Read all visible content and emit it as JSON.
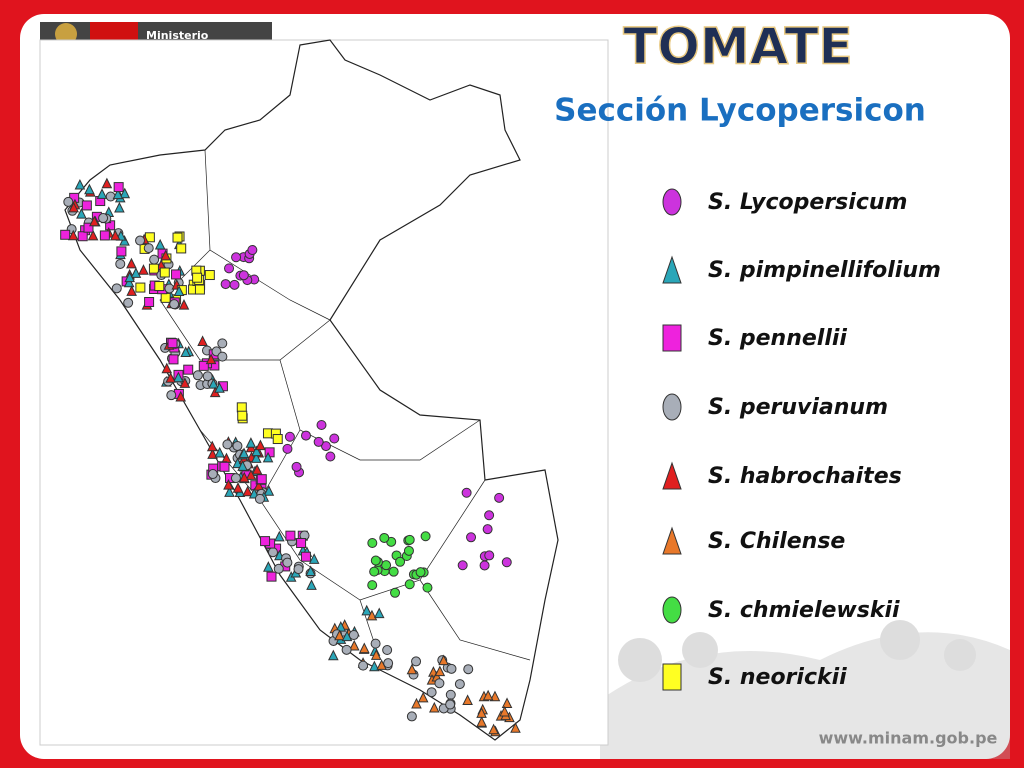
{
  "header": {
    "logo_text": "Ministerio"
  },
  "title": "TOMATE",
  "subtitle": "Sección Lycopersicon",
  "legend": [
    {
      "label": "S. Lycopersicum",
      "shape": "ellipse",
      "color": "#cc33dd"
    },
    {
      "label": "S. pimpinellifolium",
      "shape": "triangle",
      "color": "#2aa6b8"
    },
    {
      "label": "S. pennellii",
      "shape": "square",
      "color": "#ee22dd"
    },
    {
      "label": "S. peruvianum",
      "shape": "ellipse",
      "color": "#a8aeb8"
    },
    {
      "label": "S. habrochaites",
      "shape": "triangle",
      "color": "#e02020"
    },
    {
      "label": "S. Chilense",
      "shape": "triangle",
      "color": "#e8782a"
    },
    {
      "label": "S. chmielewskii",
      "shape": "ellipse",
      "color": "#44dd44"
    },
    {
      "label": "S. neorickii",
      "shape": "square",
      "color": "#ffff22"
    }
  ],
  "footer": "www.minam.gob.pe"
}
